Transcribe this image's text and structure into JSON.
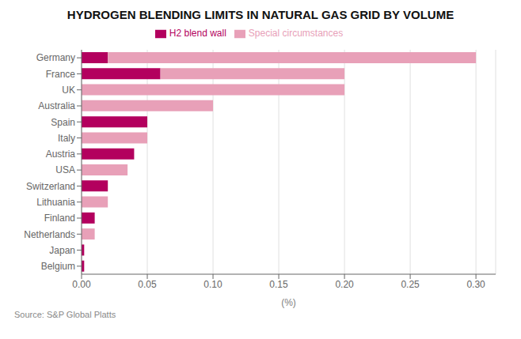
{
  "chart_data": {
    "type": "bar",
    "orientation": "horizontal",
    "stacked": true,
    "title": "HYDROGEN BLENDING LIMITS IN NATURAL GAS GRID BY VOLUME",
    "xlabel": "(%)",
    "annotations": [
      "Source: S&P Global Platts"
    ],
    "categories": [
      "Germany",
      "France",
      "UK",
      "Australia",
      "Spain",
      "Italy",
      "Austria",
      "USA",
      "Switzerland",
      "Lithuania",
      "Finland",
      "Netherlands",
      "Japan",
      "Belgium"
    ],
    "series": [
      {
        "name": "H2 blend wall",
        "color": "#B3005E",
        "values": [
          0.02,
          0.06,
          0.0,
          0.0,
          0.05,
          0.0,
          0.04,
          0.0,
          0.02,
          0.0,
          0.01,
          0.0,
          0.002,
          0.002
        ]
      },
      {
        "name": "Special circumstances",
        "color": "#E8A0B8",
        "values": [
          0.28,
          0.14,
          0.2,
          0.1,
          0.0,
          0.05,
          0.0,
          0.035,
          0.0,
          0.02,
          0.0,
          0.01,
          0.0,
          0.0
        ]
      }
    ],
    "xlim": [
      0,
      0.315
    ],
    "xticks": [
      {
        "value": 0.0,
        "label": "0.00"
      },
      0.05,
      {
        "value": 0.1,
        "label": "0.10"
      },
      0.15,
      {
        "value": 0.2,
        "label": "0.20"
      },
      0.25,
      {
        "value": 0.3,
        "label": "0.30"
      }
    ],
    "grid": true,
    "legend": "top"
  }
}
